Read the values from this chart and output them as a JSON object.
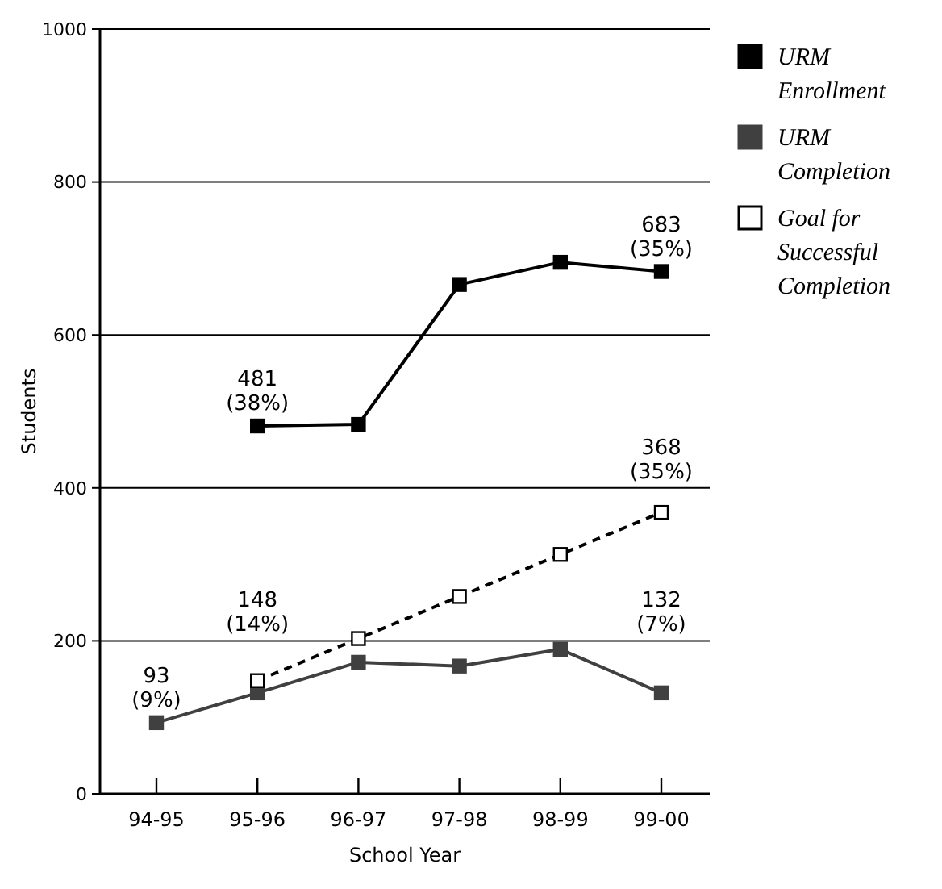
{
  "chart_data": {
    "type": "line",
    "xlabel": "School Year",
    "ylabel": "Students",
    "categories": [
      "94-95",
      "95-96",
      "96-97",
      "97-98",
      "98-99",
      "99-00"
    ],
    "ylim": [
      0,
      1000
    ],
    "yticks": [
      0,
      200,
      400,
      600,
      800,
      1000
    ],
    "grid": "y",
    "legend": "top right",
    "marker": "square",
    "series": [
      {
        "name": "URM Enrollment",
        "color": "#000000",
        "line_style": "solid",
        "values": [
          null,
          481,
          483,
          666,
          695,
          683
        ],
        "value_labels": [
          null,
          "481 (38%)",
          null,
          null,
          null,
          "683 (35%)"
        ]
      },
      {
        "name": "URM Completion",
        "color": "#404040",
        "line_style": "solid",
        "values": [
          93,
          132,
          172,
          167,
          189,
          132
        ],
        "value_labels": [
          "93 (9%)",
          null,
          null,
          null,
          null,
          "132 (7%)"
        ]
      },
      {
        "name": "Goal for Successful Completion",
        "color": "#000000",
        "line_style": "dashed",
        "values": [
          null,
          148,
          203,
          258,
          313,
          368
        ],
        "value_labels": [
          null,
          "148 (14%)",
          null,
          null,
          null,
          "368 (35%)"
        ]
      }
    ]
  }
}
